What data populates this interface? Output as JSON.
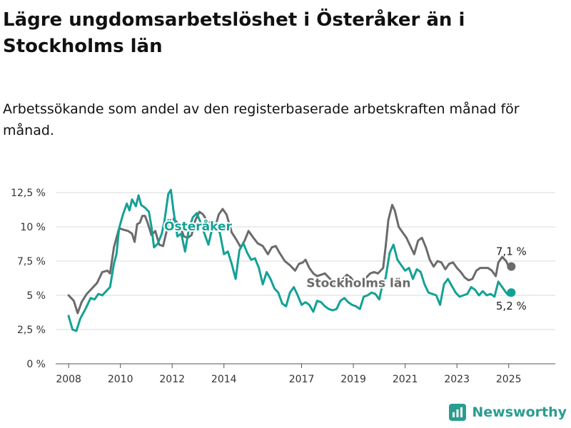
{
  "title": "Lägre ungdomsarbetslöshet i Österåker än i Stockholms län",
  "subtitle": "Arbetssökande som andel av den registerbaserade arbetskraften månad för månad.",
  "brand": "Newsworthy",
  "colors": {
    "osteraker": "#14a195",
    "stockholm": "#6b6b6b",
    "grid": "#d9d9d9",
    "axis": "#555555",
    "brand": "#2a9d8f"
  },
  "chart_data": {
    "type": "line",
    "ylim": [
      0,
      12.5
    ],
    "yticks": [
      {
        "value": 0,
        "label": "0 %"
      },
      {
        "value": 2.5,
        "label": "2,5 %"
      },
      {
        "value": 5,
        "label": "5 %"
      },
      {
        "value": 7.5,
        "label": "7,5 %"
      },
      {
        "value": 10,
        "label": "10 %"
      },
      {
        "value": 12.5,
        "label": "12,5 %"
      }
    ],
    "xlim": [
      2007.5,
      2026.8
    ],
    "xticks": [
      {
        "value": 2008,
        "label": "2008"
      },
      {
        "value": 2010,
        "label": "2010"
      },
      {
        "value": 2012,
        "label": "2012"
      },
      {
        "value": 2014,
        "label": "2014"
      },
      {
        "value": 2017,
        "label": "2017"
      },
      {
        "value": 2019,
        "label": "2019"
      },
      {
        "value": 2021,
        "label": "2021"
      },
      {
        "value": 2023,
        "label": "2023"
      },
      {
        "value": 2025,
        "label": "2025"
      }
    ],
    "series": [
      {
        "name": "Stockholms län",
        "color": "#6b6b6b",
        "end_label": "7,1 %",
        "points": [
          [
            2008.0,
            5.0
          ],
          [
            2008.2,
            4.6
          ],
          [
            2008.35,
            3.7
          ],
          [
            2008.5,
            4.5
          ],
          [
            2008.7,
            5.1
          ],
          [
            2008.9,
            5.5
          ],
          [
            2009.1,
            5.9
          ],
          [
            2009.3,
            6.7
          ],
          [
            2009.5,
            6.8
          ],
          [
            2009.6,
            6.6
          ],
          [
            2009.75,
            8.5
          ],
          [
            2009.95,
            9.9
          ],
          [
            2010.1,
            9.8
          ],
          [
            2010.3,
            9.7
          ],
          [
            2010.45,
            9.5
          ],
          [
            2010.55,
            8.9
          ],
          [
            2010.65,
            10.2
          ],
          [
            2010.75,
            10.3
          ],
          [
            2010.85,
            10.8
          ],
          [
            2010.95,
            10.8
          ],
          [
            2011.05,
            10.3
          ],
          [
            2011.2,
            9.4
          ],
          [
            2011.35,
            9.7
          ],
          [
            2011.5,
            8.7
          ],
          [
            2011.65,
            8.6
          ],
          [
            2011.85,
            10.2
          ],
          [
            2012.0,
            10.6
          ],
          [
            2012.15,
            10.4
          ],
          [
            2012.3,
            10.1
          ],
          [
            2012.45,
            9.3
          ],
          [
            2012.6,
            9.2
          ],
          [
            2012.75,
            9.4
          ],
          [
            2012.9,
            10.5
          ],
          [
            2013.05,
            11.1
          ],
          [
            2013.2,
            10.9
          ],
          [
            2013.35,
            10.4
          ],
          [
            2013.5,
            10.3
          ],
          [
            2013.65,
            9.9
          ],
          [
            2013.8,
            10.9
          ],
          [
            2013.95,
            11.3
          ],
          [
            2014.1,
            10.9
          ],
          [
            2014.3,
            9.6
          ],
          [
            2014.5,
            9.0
          ],
          [
            2014.65,
            8.5
          ],
          [
            2014.8,
            9.0
          ],
          [
            2014.95,
            9.7
          ],
          [
            2015.1,
            9.3
          ],
          [
            2015.3,
            8.8
          ],
          [
            2015.5,
            8.6
          ],
          [
            2015.7,
            8.0
          ],
          [
            2015.85,
            8.5
          ],
          [
            2016.0,
            8.6
          ],
          [
            2016.15,
            8.1
          ],
          [
            2016.35,
            7.5
          ],
          [
            2016.55,
            7.2
          ],
          [
            2016.75,
            6.8
          ],
          [
            2016.9,
            7.3
          ],
          [
            2017.05,
            7.4
          ],
          [
            2017.15,
            7.6
          ],
          [
            2017.3,
            7.0
          ],
          [
            2017.45,
            6.6
          ],
          [
            2017.6,
            6.4
          ],
          [
            2017.75,
            6.5
          ],
          [
            2017.9,
            6.6
          ],
          [
            2018.0,
            6.4
          ],
          [
            2018.15,
            6.1
          ],
          [
            2018.3,
            5.8
          ],
          [
            2018.45,
            6.0
          ],
          [
            2018.6,
            6.2
          ],
          [
            2018.75,
            6.5
          ],
          [
            2018.9,
            6.3
          ],
          [
            2019.05,
            5.9
          ],
          [
            2019.2,
            5.6
          ],
          [
            2019.35,
            6.0
          ],
          [
            2019.5,
            6.3
          ],
          [
            2019.65,
            6.6
          ],
          [
            2019.8,
            6.7
          ],
          [
            2019.95,
            6.6
          ],
          [
            2020.05,
            6.8
          ],
          [
            2020.15,
            7.0
          ],
          [
            2020.25,
            8.6
          ],
          [
            2020.35,
            10.5
          ],
          [
            2020.5,
            11.6
          ],
          [
            2020.6,
            11.2
          ],
          [
            2020.75,
            10.0
          ],
          [
            2020.9,
            9.6
          ],
          [
            2021.05,
            9.2
          ],
          [
            2021.2,
            8.6
          ],
          [
            2021.35,
            8.0
          ],
          [
            2021.5,
            9.0
          ],
          [
            2021.65,
            9.2
          ],
          [
            2021.8,
            8.5
          ],
          [
            2021.95,
            7.6
          ],
          [
            2022.1,
            7.1
          ],
          [
            2022.25,
            7.5
          ],
          [
            2022.4,
            7.4
          ],
          [
            2022.55,
            6.9
          ],
          [
            2022.7,
            7.3
          ],
          [
            2022.85,
            7.4
          ],
          [
            2023.0,
            7.0
          ],
          [
            2023.15,
            6.7
          ],
          [
            2023.3,
            6.3
          ],
          [
            2023.45,
            6.1
          ],
          [
            2023.6,
            6.2
          ],
          [
            2023.75,
            6.8
          ],
          [
            2023.9,
            7.0
          ],
          [
            2024.05,
            7.0
          ],
          [
            2024.2,
            7.0
          ],
          [
            2024.35,
            6.8
          ],
          [
            2024.5,
            6.4
          ],
          [
            2024.6,
            7.4
          ],
          [
            2024.75,
            7.8
          ],
          [
            2024.9,
            7.5
          ],
          [
            2025.0,
            7.1
          ],
          [
            2025.1,
            7.1
          ]
        ]
      },
      {
        "name": "Österåker",
        "color": "#14a195",
        "end_label": "5,2 %",
        "points": [
          [
            2008.0,
            3.5
          ],
          [
            2008.15,
            2.5
          ],
          [
            2008.3,
            2.4
          ],
          [
            2008.45,
            3.3
          ],
          [
            2008.65,
            4.0
          ],
          [
            2008.85,
            4.8
          ],
          [
            2009.0,
            4.7
          ],
          [
            2009.15,
            5.1
          ],
          [
            2009.3,
            5.0
          ],
          [
            2009.45,
            5.3
          ],
          [
            2009.6,
            5.6
          ],
          [
            2009.75,
            7.3
          ],
          [
            2009.85,
            8.0
          ],
          [
            2009.95,
            9.9
          ],
          [
            2010.1,
            10.9
          ],
          [
            2010.25,
            11.7
          ],
          [
            2010.35,
            11.2
          ],
          [
            2010.45,
            12.0
          ],
          [
            2010.6,
            11.5
          ],
          [
            2010.7,
            12.3
          ],
          [
            2010.8,
            11.6
          ],
          [
            2010.95,
            11.4
          ],
          [
            2011.1,
            11.1
          ],
          [
            2011.2,
            10.0
          ],
          [
            2011.3,
            8.5
          ],
          [
            2011.45,
            8.8
          ],
          [
            2011.6,
            9.5
          ],
          [
            2011.7,
            10.4
          ],
          [
            2011.85,
            12.4
          ],
          [
            2011.95,
            12.7
          ],
          [
            2012.05,
            11.2
          ],
          [
            2012.2,
            9.3
          ],
          [
            2012.35,
            9.5
          ],
          [
            2012.5,
            8.2
          ],
          [
            2012.65,
            9.9
          ],
          [
            2012.8,
            10.7
          ],
          [
            2012.95,
            11.0
          ],
          [
            2013.1,
            10.3
          ],
          [
            2013.25,
            9.5
          ],
          [
            2013.4,
            8.7
          ],
          [
            2013.55,
            9.9
          ],
          [
            2013.7,
            10.3
          ],
          [
            2013.85,
            9.5
          ],
          [
            2014.0,
            8.0
          ],
          [
            2014.15,
            8.2
          ],
          [
            2014.3,
            7.3
          ],
          [
            2014.45,
            6.2
          ],
          [
            2014.6,
            8.3
          ],
          [
            2014.75,
            8.8
          ],
          [
            2014.9,
            8.1
          ],
          [
            2015.05,
            7.6
          ],
          [
            2015.2,
            7.7
          ],
          [
            2015.35,
            7.0
          ],
          [
            2015.5,
            5.8
          ],
          [
            2015.65,
            6.7
          ],
          [
            2015.8,
            6.2
          ],
          [
            2015.95,
            5.5
          ],
          [
            2016.1,
            5.2
          ],
          [
            2016.25,
            4.4
          ],
          [
            2016.4,
            4.2
          ],
          [
            2016.55,
            5.2
          ],
          [
            2016.7,
            5.6
          ],
          [
            2016.85,
            5.0
          ],
          [
            2017.0,
            4.3
          ],
          [
            2017.15,
            4.5
          ],
          [
            2017.3,
            4.3
          ],
          [
            2017.45,
            3.8
          ],
          [
            2017.6,
            4.6
          ],
          [
            2017.75,
            4.5
          ],
          [
            2017.9,
            4.2
          ],
          [
            2018.05,
            4.0
          ],
          [
            2018.2,
            3.9
          ],
          [
            2018.35,
            4.0
          ],
          [
            2018.5,
            4.6
          ],
          [
            2018.65,
            4.8
          ],
          [
            2018.8,
            4.5
          ],
          [
            2018.95,
            4.3
          ],
          [
            2019.1,
            4.2
          ],
          [
            2019.25,
            4.0
          ],
          [
            2019.4,
            4.9
          ],
          [
            2019.55,
            5.0
          ],
          [
            2019.7,
            5.2
          ],
          [
            2019.85,
            5.1
          ],
          [
            2020.0,
            4.7
          ],
          [
            2020.1,
            5.6
          ],
          [
            2020.25,
            6.3
          ],
          [
            2020.4,
            8.1
          ],
          [
            2020.55,
            8.7
          ],
          [
            2020.7,
            7.6
          ],
          [
            2020.85,
            7.2
          ],
          [
            2021.0,
            6.8
          ],
          [
            2021.15,
            7.0
          ],
          [
            2021.3,
            6.2
          ],
          [
            2021.45,
            6.9
          ],
          [
            2021.6,
            6.7
          ],
          [
            2021.75,
            5.8
          ],
          [
            2021.9,
            5.2
          ],
          [
            2022.05,
            5.1
          ],
          [
            2022.2,
            5.0
          ],
          [
            2022.35,
            4.3
          ],
          [
            2022.5,
            5.8
          ],
          [
            2022.65,
            6.2
          ],
          [
            2022.8,
            5.7
          ],
          [
            2022.95,
            5.2
          ],
          [
            2023.1,
            4.9
          ],
          [
            2023.25,
            5.0
          ],
          [
            2023.4,
            5.1
          ],
          [
            2023.55,
            5.6
          ],
          [
            2023.7,
            5.4
          ],
          [
            2023.85,
            5.0
          ],
          [
            2024.0,
            5.3
          ],
          [
            2024.15,
            5.0
          ],
          [
            2024.3,
            5.1
          ],
          [
            2024.45,
            4.9
          ],
          [
            2024.6,
            6.0
          ],
          [
            2024.75,
            5.6
          ],
          [
            2024.9,
            5.2
          ],
          [
            2025.0,
            5.0
          ],
          [
            2025.1,
            5.2
          ]
        ]
      }
    ],
    "labels": [
      {
        "text": "Österåker",
        "series": "Österåker",
        "x": 2013.0,
        "y": 9.75
      },
      {
        "text": "Stockholms län",
        "series": "Stockholms län",
        "x": 2019.2,
        "y": 5.6
      }
    ]
  }
}
